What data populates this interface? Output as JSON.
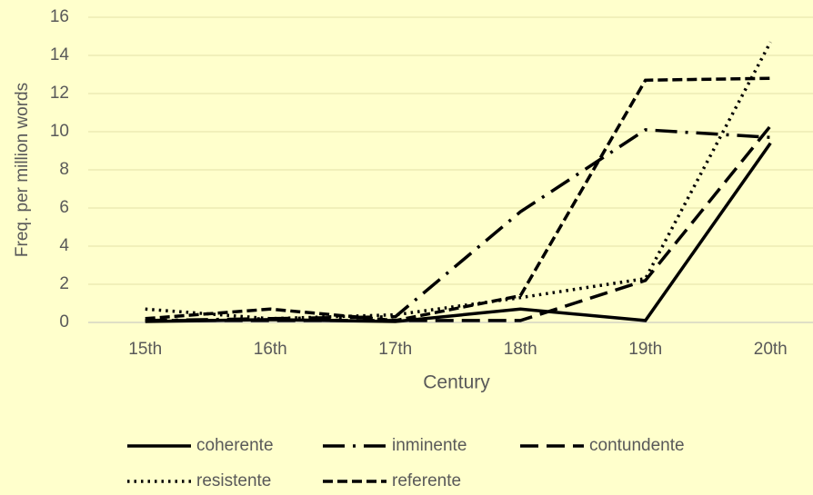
{
  "chart_data": {
    "type": "line",
    "x_label": "Century",
    "y_label": "Freq. per million words",
    "categories": [
      "15th",
      "16th",
      "17th",
      "18th",
      "19th",
      "20th"
    ],
    "ylim": [
      0,
      16
    ],
    "yticks": [
      0,
      2,
      4,
      6,
      8,
      10,
      12,
      14,
      16
    ],
    "grid": true,
    "series": [
      {
        "name": "coherente",
        "color": "#000000",
        "dash": "solid",
        "values": [
          0.05,
          0.15,
          0.05,
          0.7,
          0.1,
          9.4
        ]
      },
      {
        "name": "inminente",
        "color": "#000000",
        "dash": "long-dash-dot",
        "values": [
          0.1,
          0.2,
          0.3,
          5.8,
          10.1,
          9.7
        ]
      },
      {
        "name": "contundente",
        "color": "#000000",
        "dash": "long-dash",
        "values": [
          0.1,
          0.1,
          0.1,
          0.1,
          2.2,
          10.3
        ]
      },
      {
        "name": "resistente",
        "color": "#000000",
        "dash": "dot",
        "values": [
          0.7,
          0.2,
          0.4,
          1.3,
          2.3,
          14.7
        ]
      },
      {
        "name": "referente",
        "color": "#000000",
        "dash": "dash",
        "values": [
          0.2,
          0.7,
          0.1,
          1.4,
          12.7,
          12.8
        ]
      }
    ]
  }
}
